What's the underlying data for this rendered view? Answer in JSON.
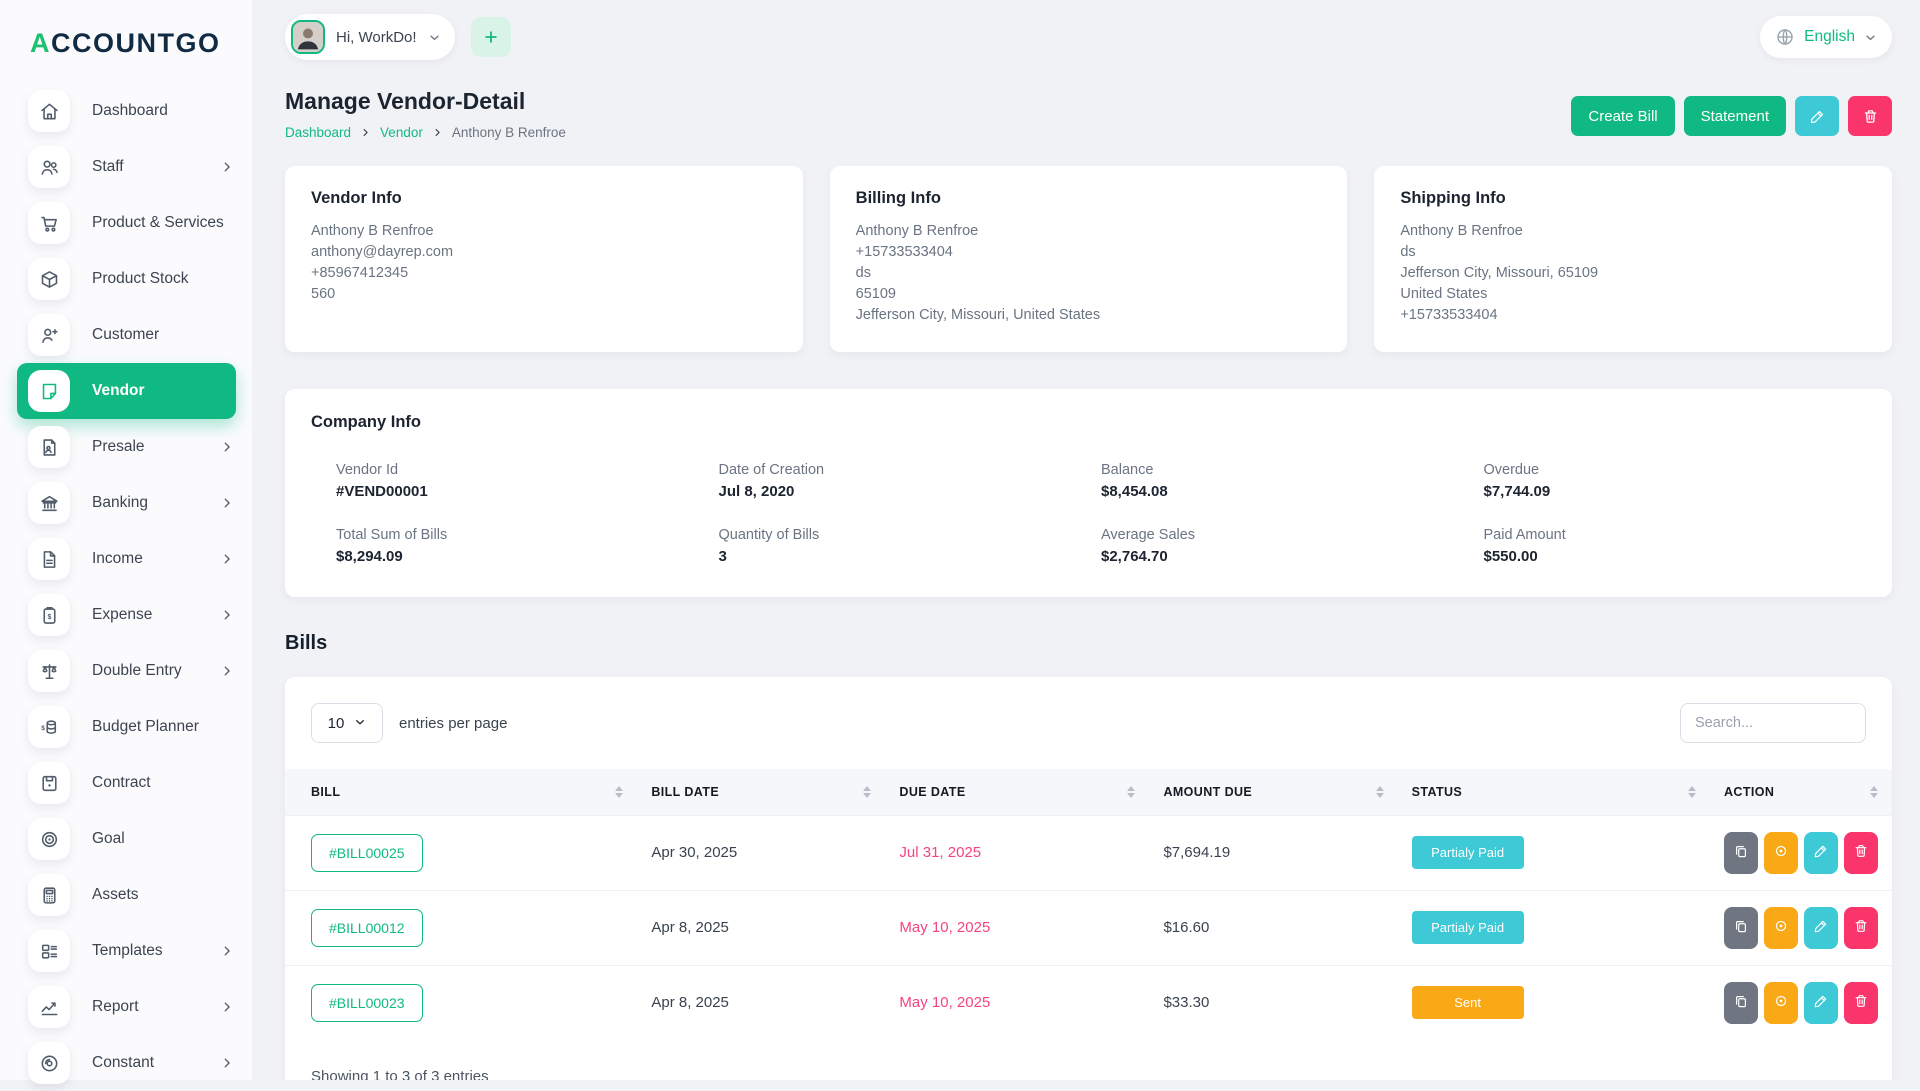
{
  "brand": {
    "logo_first": "A",
    "logo_rest": "CCOUNTGO"
  },
  "topbar": {
    "greeting": "Hi, WorkDo!",
    "language": "English"
  },
  "sidebar": {
    "items": [
      {
        "label": "Dashboard",
        "icon": "home",
        "chevron": false,
        "active": false
      },
      {
        "label": "Staff",
        "icon": "users",
        "chevron": true,
        "active": false
      },
      {
        "label": "Product & Services",
        "icon": "cart",
        "chevron": false,
        "active": false
      },
      {
        "label": "Product Stock",
        "icon": "package",
        "chevron": false,
        "active": false
      },
      {
        "label": "Customer",
        "icon": "user-plus",
        "chevron": false,
        "active": false
      },
      {
        "label": "Vendor",
        "icon": "note",
        "chevron": false,
        "active": true
      },
      {
        "label": "Presale",
        "icon": "doc-user",
        "chevron": true,
        "active": false
      },
      {
        "label": "Banking",
        "icon": "bank",
        "chevron": true,
        "active": false
      },
      {
        "label": "Income",
        "icon": "file",
        "chevron": true,
        "active": false
      },
      {
        "label": "Expense",
        "icon": "clipboard-dollar",
        "chevron": true,
        "active": false
      },
      {
        "label": "Double Entry",
        "icon": "scales",
        "chevron": true,
        "active": false
      },
      {
        "label": "Budget Planner",
        "icon": "coins",
        "chevron": false,
        "active": false
      },
      {
        "label": "Contract",
        "icon": "save",
        "chevron": false,
        "active": false
      },
      {
        "label": "Goal",
        "icon": "target",
        "chevron": false,
        "active": false
      },
      {
        "label": "Assets",
        "icon": "calculator",
        "chevron": false,
        "active": false
      },
      {
        "label": "Templates",
        "icon": "layout",
        "chevron": true,
        "active": false
      },
      {
        "label": "Report",
        "icon": "chart",
        "chevron": true,
        "active": false
      },
      {
        "label": "Constant",
        "icon": "disc",
        "chevron": true,
        "active": false
      }
    ]
  },
  "page": {
    "title": "Manage Vendor-Detail",
    "breadcrumb": [
      {
        "label": "Dashboard",
        "link": true
      },
      {
        "label": "Vendor",
        "link": true
      },
      {
        "label": "Anthony B Renfroe",
        "link": false
      }
    ],
    "buttons": {
      "create_bill": "Create Bill",
      "statement": "Statement"
    }
  },
  "info_cards": [
    {
      "title": "Vendor Info",
      "lines": [
        "Anthony B Renfroe",
        "anthony@dayrep.com",
        "+85967412345",
        "560"
      ]
    },
    {
      "title": "Billing Info",
      "lines": [
        "Anthony B Renfroe",
        "+15733533404",
        "ds",
        "65109",
        "Jefferson City, Missouri, United States"
      ]
    },
    {
      "title": "Shipping Info",
      "lines": [
        "Anthony B Renfroe",
        "ds",
        "Jefferson City, Missouri, 65109",
        "United States",
        "+15733533404"
      ]
    }
  ],
  "company_info": {
    "title": "Company Info",
    "stats": [
      {
        "label": "Vendor Id",
        "value": "#VEND00001"
      },
      {
        "label": "Date of Creation",
        "value": "Jul 8, 2020"
      },
      {
        "label": "Balance",
        "value": "$8,454.08"
      },
      {
        "label": "Overdue",
        "value": "$7,744.09"
      },
      {
        "label": "Total Sum of Bills",
        "value": "$8,294.09"
      },
      {
        "label": "Quantity of Bills",
        "value": "3"
      },
      {
        "label": "Average Sales",
        "value": "$2,764.70"
      },
      {
        "label": "Paid Amount",
        "value": "$550.00"
      }
    ]
  },
  "bills": {
    "title": "Bills",
    "entries_per_page": "10",
    "entries_label": "entries per page",
    "search_placeholder": "Search...",
    "columns": [
      "BILL",
      "BILL DATE",
      "DUE DATE",
      "AMOUNT DUE",
      "STATUS",
      "ACTION"
    ],
    "rows": [
      {
        "bill": "#BILL00025",
        "bill_date": "Apr 30, 2025",
        "due_date": "Jul 31, 2025",
        "amount_due": "$7,694.19",
        "status": "Partialy Paid",
        "status_color": "#3ec9d6"
      },
      {
        "bill": "#BILL00012",
        "bill_date": "Apr 8, 2025",
        "due_date": "May 10, 2025",
        "amount_due": "$16.60",
        "status": "Partialy Paid",
        "status_color": "#3ec9d6"
      },
      {
        "bill": "#BILL00023",
        "bill_date": "Apr 8, 2025",
        "due_date": "May 10, 2025",
        "amount_due": "$33.30",
        "status": "Sent",
        "status_color": "#f9a916"
      }
    ],
    "row_actions": [
      "duplicate",
      "view",
      "edit",
      "delete"
    ],
    "footer": "Showing 1 to 3 of 3 entries"
  },
  "colors": {
    "primary_green": "#10b981",
    "cyan": "#3ec9d6",
    "orange": "#f9a916",
    "pink": "#f9356b",
    "due_date_red": "#f5447c",
    "logo_navy": "#112b45"
  }
}
